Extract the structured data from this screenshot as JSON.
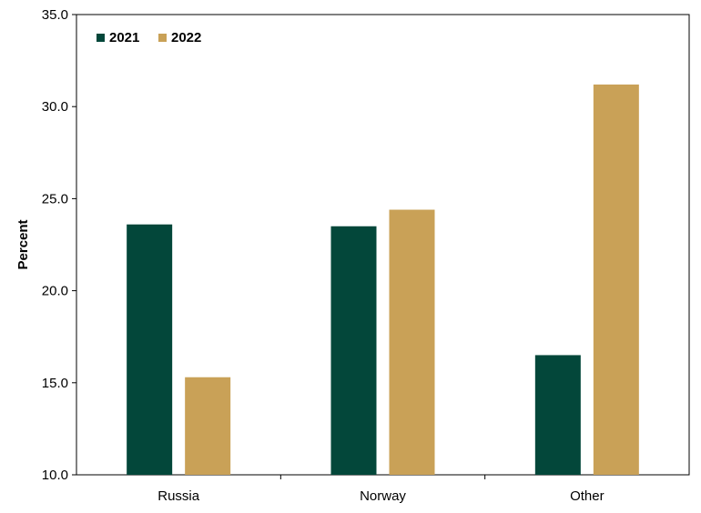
{
  "chart_data": {
    "type": "bar",
    "title": "",
    "xlabel": "",
    "ylabel": "Percent",
    "ylim": [
      10.0,
      35.0
    ],
    "yticks": [
      "10.0",
      "15.0",
      "20.0",
      "25.0",
      "30.0",
      "35.0"
    ],
    "categories": [
      "Russia",
      "Norway",
      "Other"
    ],
    "series": [
      {
        "name": "2021",
        "color": "#03473A",
        "values": [
          23.6,
          23.5,
          16.5
        ]
      },
      {
        "name": "2022",
        "color": "#C9A157",
        "values": [
          15.3,
          24.4,
          31.2
        ]
      }
    ],
    "legend_position": "top-left",
    "grid": false
  }
}
